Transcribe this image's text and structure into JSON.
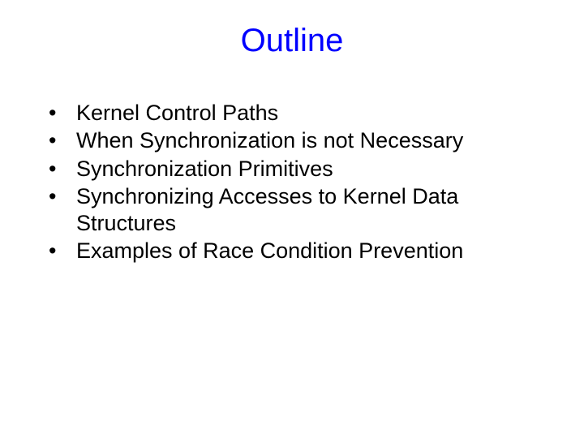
{
  "background_color": "#ffffff",
  "title": {
    "text": "Outline",
    "color": "#0000ff",
    "fontsize": 40,
    "weight": "normal",
    "align": "center"
  },
  "bullets": {
    "color": "#000000",
    "fontsize": 27,
    "marker": "•",
    "items": [
      "Kernel Control Paths",
      "When Synchronization is not Necessary",
      "Synchronization Primitives",
      "Synchronizing Accesses to Kernel Data Structures",
      "Examples of Race Condition Prevention"
    ]
  }
}
